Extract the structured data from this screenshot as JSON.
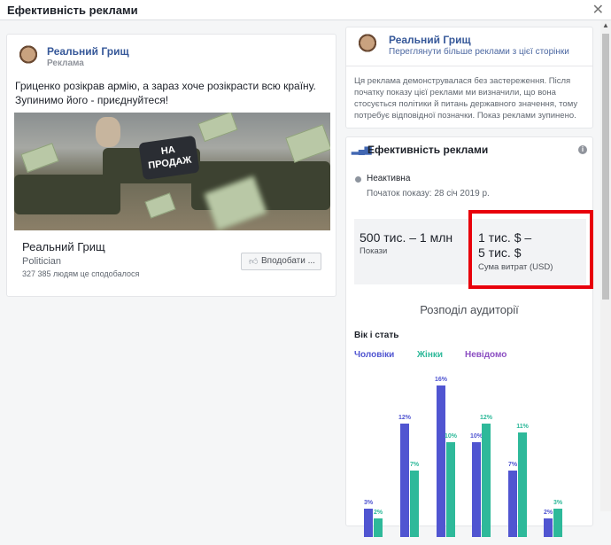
{
  "dialog": {
    "title": "Ефективність реклами",
    "close_icon": "close-icon"
  },
  "ad": {
    "page_name": "Реальний Грищ",
    "sponsored": "Реклама",
    "text": "Гриценко розікрав армію, а зараз хоче розікрасти всю країну. Зупинимо його - приєднуйтеся!",
    "image_sign": "НА ПРОДАЖ",
    "footer_name": "Реальний Грищ",
    "category": "Politician",
    "likes": "327 385 людям це сподобалося",
    "like_button": "Вподобати ..."
  },
  "side": {
    "page_name": "Реальний Грищ",
    "more_ads_link": "Переглянути більше реклами з цієї сторінки",
    "notice": "Ця реклама демонструвалася без застереження. Після початку показу цієї реклами ми визначили, що вона стосується політики й питань державного значення, тому потребує відповідної позначки. Показ реклами зупинено."
  },
  "performance": {
    "title": "Ефективність реклами",
    "status": "Неактивна",
    "start": "Початок показу: 28 січ 2019 р.",
    "impressions_value": "500 тис. – 1 млн",
    "impressions_label": "Покази",
    "spend_value_1": "1 тис. $ –",
    "spend_value_2": "5 тис. $",
    "spend_label": "Сума витрат (USD)",
    "highlight_color": "#e8000b"
  },
  "audience": {
    "title": "Розподіл аудиторії",
    "section": "Вік і стать",
    "legend": {
      "men": "Чоловіки",
      "women": "Жінки",
      "unknown": "Невідомо"
    }
  },
  "chart_data": {
    "type": "bar",
    "series": [
      {
        "name": "Чоловіки",
        "color": "#5055d1",
        "values": [
          3,
          12,
          16,
          10,
          7,
          2
        ]
      },
      {
        "name": "Жінки",
        "color": "#2eb99a",
        "values": [
          2,
          7,
          10,
          12,
          11,
          3
        ]
      }
    ],
    "labels_suffix": "%"
  }
}
